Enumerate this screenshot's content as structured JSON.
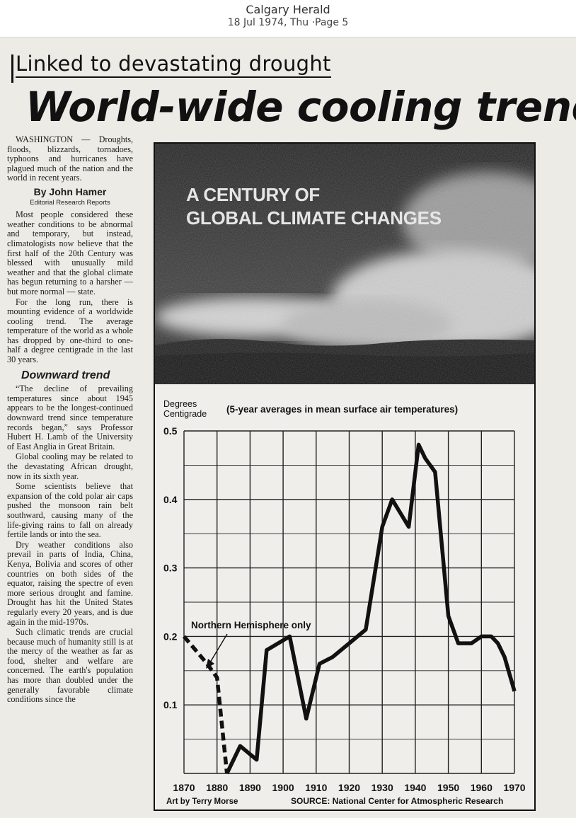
{
  "viewer": {
    "publication": "Calgary Herald",
    "date_line": "18 Jul 1974, Thu ·Page 5"
  },
  "article": {
    "kicker": "Linked to devastating drought",
    "headline": "World-wide cooling trend",
    "lead": "WASHINGTON — Droughts, floods, blizzards, tornadoes, typhoons and hurricanes have plagued much of the nation and the world in recent years.",
    "byline": "By John Hamer",
    "byline_org": "Editorial Research Reports",
    "paragraphs_1": [
      "Most people considered these weather conditions to be abnormal and temporary, but instead, climatologists now believe that the first half of the 20th Century was blessed with unusually mild weather and that the global climate has begun returning to a harsher — but more normal — state.",
      "For the long run, there is mounting evidence of a worldwide cooling trend. The average temperature of the world as a whole has dropped by one-third to one-half a degree centigrade in the last 30 years."
    ],
    "subhead": "Downward trend",
    "paragraphs_2": [
      "“The decline of prevailing temperatures since about 1945 appears to be the longest-continued downward trend since temperature records began,” says Professor Hubert H. Lamb of the University of East Anglia in Great Britain.",
      "Global cooling may be related to the devastating African drought, now in its sixth year.",
      "Some scientists believe that expansion of the cold polar air caps pushed the monsoon rain belt southward, causing many of the life-giving rains to fall on already fertile lands or into the sea.",
      "Dry weather conditions also prevail in parts of India, China, Kenya, Bolivia and scores of other countries on both sides of the equator, raising the spectre of even more serious drought and famine. Drought has hit the United States regularly every 20 years, and is due again in the mid-1970s.",
      "Such climatic trends are crucial because much of humanity still is at the mercy of the weather as far as food, shelter and welfare are concerned. The earth's population has more than doubled under the generally favorable climate conditions since the"
    ]
  },
  "graphic": {
    "photo_title_line1": "A CENTURY OF",
    "photo_title_line2": "GLOBAL CLIMATE CHANGES",
    "credit": "Art by Terry Morse",
    "source": "SOURCE: National Center for Atmospheric Research"
  },
  "chart_data": {
    "type": "line",
    "title": "(5-year averages in mean surface air temperatures)",
    "ylabel_line1": "Degrees",
    "ylabel_line2": "Centigrade",
    "annotation": "Northern Hemisphere only",
    "xlim": [
      1870,
      1970
    ],
    "ylim": [
      0,
      0.5
    ],
    "x_ticks": [
      "1870",
      "1880",
      "1890",
      "1900",
      "1910",
      "1920",
      "1930",
      "1940",
      "1950",
      "1960",
      "1970"
    ],
    "y_ticks": [
      "0.5",
      "0.4",
      "0.3",
      "0.2",
      "0.1"
    ],
    "series": [
      {
        "style": "dashed",
        "x": [
          1870,
          1877,
          1880,
          1883
        ],
        "y": [
          0.2,
          0.16,
          0.14,
          0.0
        ]
      },
      {
        "style": "solid",
        "x": [
          1883,
          1887,
          1892,
          1895,
          1902,
          1907,
          1911,
          1915,
          1920,
          1925,
          1930,
          1933,
          1938,
          1941,
          1943,
          1946,
          1950,
          1953,
          1957,
          1960,
          1963,
          1965,
          1967,
          1970
        ],
        "y": [
          0.0,
          0.04,
          0.02,
          0.18,
          0.2,
          0.08,
          0.16,
          0.17,
          0.19,
          0.21,
          0.36,
          0.4,
          0.36,
          0.48,
          0.46,
          0.44,
          0.23,
          0.19,
          0.19,
          0.2,
          0.2,
          0.19,
          0.17,
          0.12
        ]
      }
    ]
  },
  "colors": {
    "ink": "#111111",
    "paper": "#ecebe6",
    "photo_sky": "#2a2a2a",
    "photo_cloud": "#cfcfcf"
  }
}
